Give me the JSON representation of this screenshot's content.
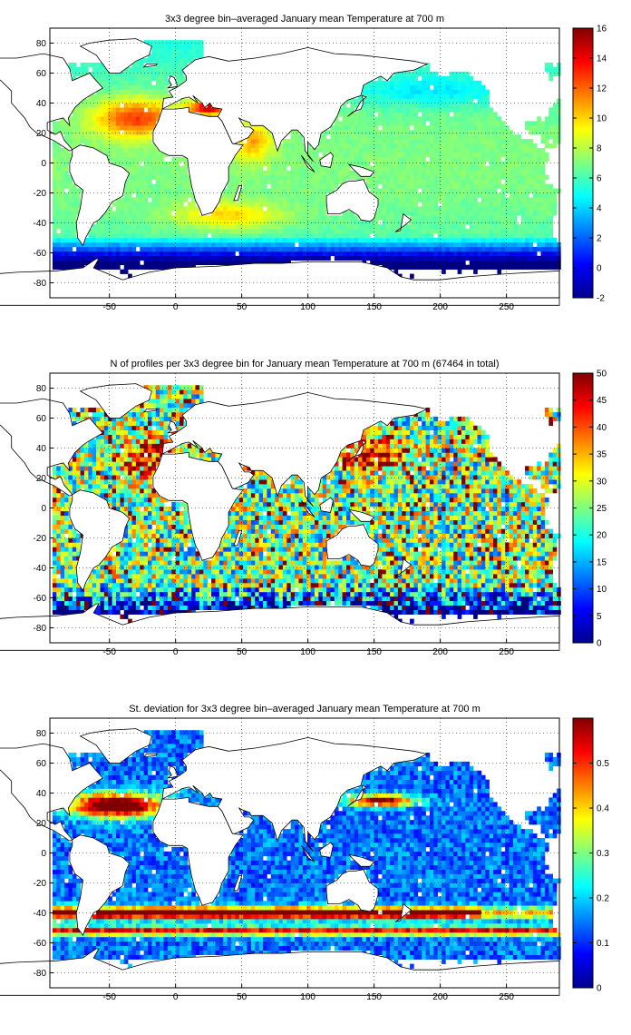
{
  "chart_data": [
    {
      "type": "heatmap",
      "title": "3x3 degree bin–averaged January mean Temperature at 700 m",
      "xlim": [
        -95,
        290
      ],
      "ylim": [
        -90,
        90
      ],
      "x_ticks": [
        "-50",
        "0",
        "50",
        "100",
        "150",
        "200",
        "250"
      ],
      "y_ticks": [
        "80",
        "60",
        "40",
        "20",
        "0",
        "-20",
        "-40",
        "-60",
        "-80"
      ],
      "colorbar": {
        "min": -2,
        "max": 16,
        "ticks": [
          "16",
          "14",
          "12",
          "10",
          "8",
          "6",
          "4",
          "2",
          "0",
          "-2"
        ]
      },
      "colormap": "jet",
      "grid": true
    },
    {
      "type": "heatmap",
      "title": "N of profiles per 3x3 degree bin for January mean Temperature at 700 m (67464 in total)",
      "xlim": [
        -95,
        290
      ],
      "ylim": [
        -90,
        90
      ],
      "x_ticks": [
        "-50",
        "0",
        "50",
        "100",
        "150",
        "200",
        "250"
      ],
      "y_ticks": [
        "80",
        "60",
        "40",
        "20",
        "0",
        "-20",
        "-40",
        "-60",
        "-80"
      ],
      "colorbar": {
        "min": 0,
        "max": 50,
        "ticks": [
          "50",
          "45",
          "40",
          "35",
          "30",
          "25",
          "20",
          "15",
          "10",
          "5",
          "0"
        ]
      },
      "total_profiles": 67464,
      "colormap": "jet",
      "grid": true
    },
    {
      "type": "heatmap",
      "title": "St. deviation for 3x3 degree bin–averaged January mean Temperature at 700 m",
      "xlim": [
        -95,
        290
      ],
      "ylim": [
        -90,
        90
      ],
      "x_ticks": [
        "-50",
        "0",
        "50",
        "100",
        "150",
        "200",
        "250"
      ],
      "y_ticks": [
        "80",
        "60",
        "40",
        "20",
        "0",
        "-20",
        "-40",
        "-60",
        "-80"
      ],
      "colorbar": {
        "min": 0,
        "max": 0.6,
        "ticks": [
          "0.5",
          "0.4",
          "0.3",
          "0.2",
          "0.1",
          "0"
        ]
      },
      "colormap": "jet",
      "grid": true
    }
  ]
}
